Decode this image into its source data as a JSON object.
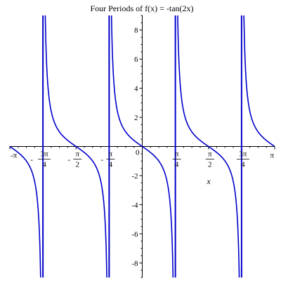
{
  "chart_data": {
    "type": "line",
    "title": "Four Periods of f(x) = -tan(2x)",
    "xlabel": "x",
    "ylabel": "",
    "xlim": [
      -3.14159265,
      3.14159265
    ],
    "ylim": [
      -9,
      9
    ],
    "line_color": "#0000cc",
    "grid": false,
    "series": [
      {
        "function": "-tan(2x)",
        "samples": 1600
      }
    ],
    "asymptotes": [
      -2.35619449,
      -0.78539816,
      0.78539816,
      2.35619449
    ],
    "x_ticks": [
      {
        "value": -3.14159265,
        "sign": "-",
        "num": "",
        "den": "",
        "coef": "",
        "symbol": "π"
      },
      {
        "value": -2.35619449,
        "sign": "-",
        "num": "π",
        "den": "4",
        "coef": "3",
        "symbol": ""
      },
      {
        "value": -1.57079633,
        "sign": "-",
        "num": "π",
        "den": "2",
        "coef": "",
        "symbol": ""
      },
      {
        "value": -0.78539816,
        "sign": "-",
        "num": "π",
        "den": "4",
        "coef": "",
        "symbol": ""
      },
      {
        "value": 0.0,
        "sign": "",
        "num": "",
        "den": "",
        "coef": "",
        "symbol": "0"
      },
      {
        "value": 0.78539816,
        "sign": "",
        "num": "π",
        "den": "4",
        "coef": "",
        "symbol": ""
      },
      {
        "value": 1.57079633,
        "sign": "",
        "num": "π",
        "den": "2",
        "coef": "",
        "symbol": ""
      },
      {
        "value": 2.35619449,
        "sign": "",
        "num": "π",
        "den": "4",
        "coef": "3",
        "symbol": ""
      },
      {
        "value": 3.14159265,
        "sign": "",
        "num": "",
        "den": "",
        "coef": "",
        "symbol": "π"
      }
    ],
    "y_ticks": [
      {
        "value": 8,
        "label": "8"
      },
      {
        "value": 6,
        "label": "6"
      },
      {
        "value": 4,
        "label": "4"
      },
      {
        "value": 2,
        "label": "2"
      },
      {
        "value": -2,
        "label": "-2"
      },
      {
        "value": -4,
        "label": "-4"
      },
      {
        "value": -6,
        "label": "-6"
      },
      {
        "value": -8,
        "label": "-8"
      }
    ]
  }
}
